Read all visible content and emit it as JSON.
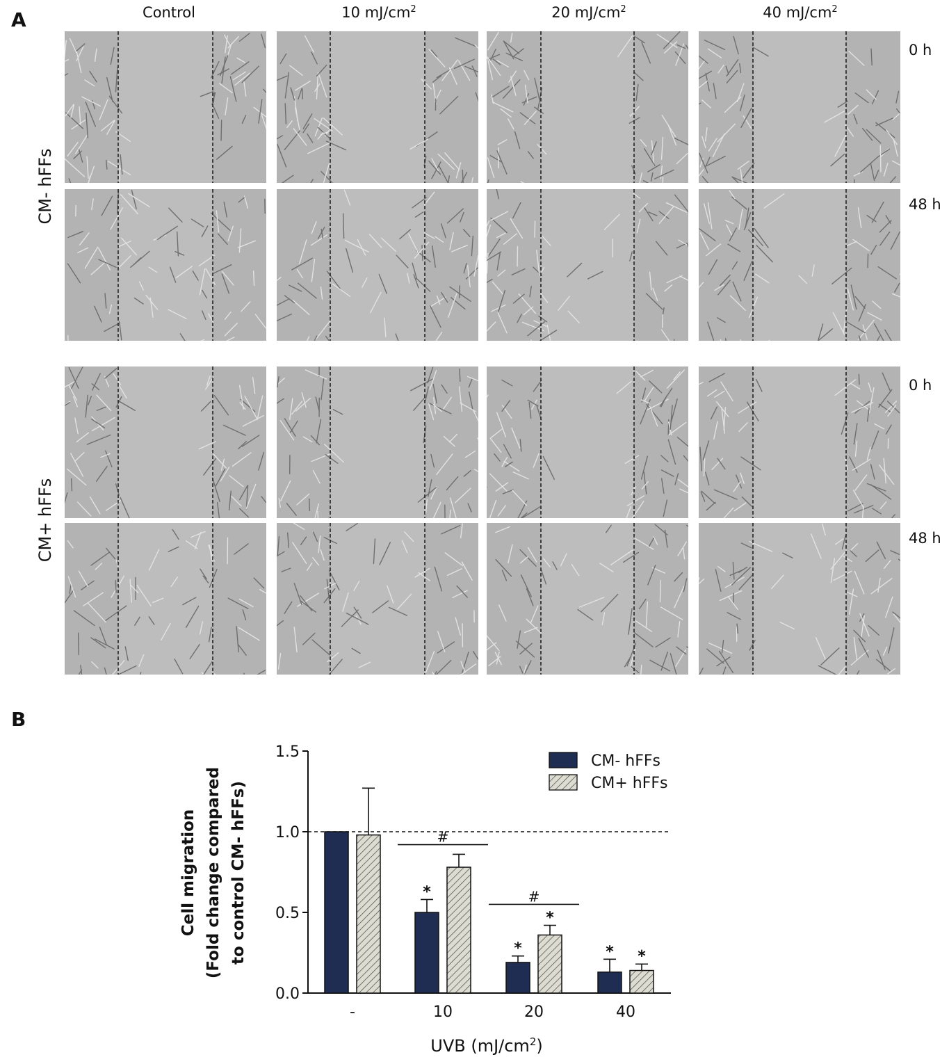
{
  "figure": {
    "panel_a": {
      "letter": "A",
      "columns": [
        {
          "text": "Control",
          "sup": ""
        },
        {
          "text": "10 mJ/cm",
          "sup": "2"
        },
        {
          "text": "20 mJ/cm",
          "sup": "2"
        },
        {
          "text": "40 mJ/cm",
          "sup": "2"
        }
      ],
      "rows": [
        {
          "group": "CM- hFFs",
          "times": [
            "0 h",
            "48 h"
          ]
        },
        {
          "group": "CM+ hFFs",
          "times": [
            "0 h",
            "48 h"
          ]
        }
      ]
    },
    "panel_b": {
      "letter": "B"
    }
  },
  "chart_data": {
    "type": "bar",
    "categories": [
      "-",
      "10",
      "20",
      "40"
    ],
    "series": [
      {
        "name": "CM- hFFs",
        "values": [
          1.0,
          0.5,
          0.19,
          0.13
        ],
        "errors": [
          0.0,
          0.08,
          0.04,
          0.08
        ],
        "pattern": "solid",
        "color": "#1f2d52"
      },
      {
        "name": "CM+ hFFs",
        "values": [
          0.98,
          0.78,
          0.36,
          0.14
        ],
        "errors": [
          0.29,
          0.08,
          0.06,
          0.04
        ],
        "pattern": "hatched",
        "color": "#dcdcd2"
      }
    ],
    "significance": [
      {
        "category": "10",
        "series": 0,
        "mark": "*"
      },
      {
        "category": "10",
        "series": 1,
        "mark": ""
      },
      {
        "category": "20",
        "series": 0,
        "mark": "*"
      },
      {
        "category": "20",
        "series": 1,
        "mark": "*"
      },
      {
        "category": "40",
        "series": 0,
        "mark": "*"
      },
      {
        "category": "40",
        "series": 1,
        "mark": "*"
      }
    ],
    "brackets": [
      {
        "category": "10",
        "y": 0.92,
        "mark": "#"
      },
      {
        "category": "20",
        "y": 0.55,
        "mark": "#"
      }
    ],
    "reference_line": 1.0,
    "ylim": [
      0,
      1.5
    ],
    "yticks": [
      "0.0",
      "0.5",
      "1.0",
      "1.5"
    ],
    "ylabel_lines": [
      "Cell migration",
      "(Fold change compared",
      "to control CM- hFFs)"
    ],
    "xlabel": "UVB (mJ/cm",
    "xlabel_sup": "2",
    "xlabel_end": ")",
    "legend_position": "top-right"
  }
}
